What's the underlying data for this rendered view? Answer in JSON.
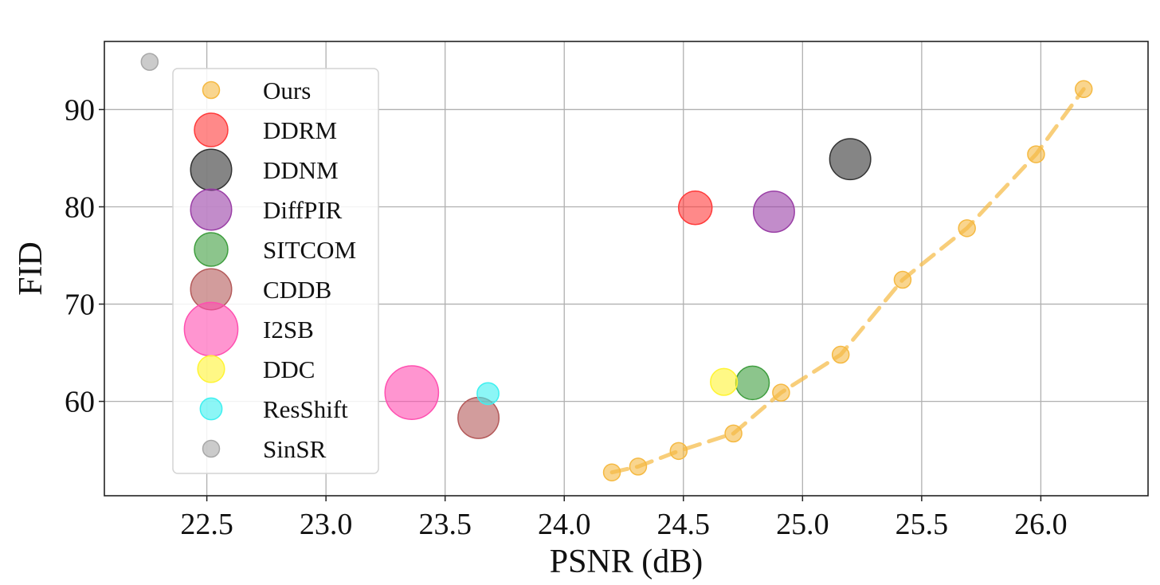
{
  "chart_data": {
    "type": "scatter",
    "title": "",
    "xlabel": "PSNR (dB)",
    "ylabel": "FID",
    "xlim": [
      22.07,
      26.45
    ],
    "ylim": [
      50.3,
      97.0
    ],
    "xticks": [
      22.5,
      23.0,
      23.5,
      24.0,
      24.5,
      25.0,
      25.5,
      26.0
    ],
    "xtick_labels": [
      "22.5",
      "23.0",
      "23.5",
      "24.0",
      "24.5",
      "25.0",
      "25.5",
      "26.0"
    ],
    "yticks": [
      60,
      70,
      80,
      90
    ],
    "ytick_labels": [
      "60",
      "70",
      "80",
      "90"
    ],
    "grid": true,
    "legend_position": "upper-left",
    "series": [
      {
        "name": "Ours",
        "color": "#f5b942",
        "line": "dashed",
        "size": 1.0,
        "points": [
          {
            "x": 24.2,
            "y": 52.7
          },
          {
            "x": 24.31,
            "y": 53.3
          },
          {
            "x": 24.48,
            "y": 54.9
          },
          {
            "x": 24.71,
            "y": 56.7
          },
          {
            "x": 24.91,
            "y": 60.9
          },
          {
            "x": 25.16,
            "y": 64.8
          },
          {
            "x": 25.42,
            "y": 72.5
          },
          {
            "x": 25.69,
            "y": 77.8
          },
          {
            "x": 25.98,
            "y": 85.4
          },
          {
            "x": 26.18,
            "y": 92.1
          }
        ]
      },
      {
        "name": "DDRM",
        "color": "#ff3b3b",
        "size": 2.0,
        "points": [
          {
            "x": 24.55,
            "y": 79.9
          }
        ]
      },
      {
        "name": "DDNM",
        "color": "#333333",
        "size": 2.45,
        "points": [
          {
            "x": 25.2,
            "y": 84.9
          }
        ]
      },
      {
        "name": "DiffPIR",
        "color": "#9a3fa6",
        "size": 2.45,
        "points": [
          {
            "x": 24.88,
            "y": 79.5
          }
        ]
      },
      {
        "name": "SITCOM",
        "color": "#3f9e3f",
        "size": 2.0,
        "points": [
          {
            "x": 24.79,
            "y": 61.9
          }
        ]
      },
      {
        "name": "CDDB",
        "color": "#b45a5a",
        "size": 2.45,
        "points": [
          {
            "x": 23.64,
            "y": 58.3
          }
        ]
      },
      {
        "name": "I2SB",
        "color": "#ff4fb0",
        "size": 3.2,
        "points": [
          {
            "x": 23.36,
            "y": 60.9
          }
        ]
      },
      {
        "name": "DDC",
        "color": "#fff433",
        "size": 1.6,
        "points": [
          {
            "x": 24.67,
            "y": 62.0
          }
        ]
      },
      {
        "name": "ResShift",
        "color": "#3ff0f0",
        "size": 1.3,
        "points": [
          {
            "x": 23.68,
            "y": 60.8
          }
        ]
      },
      {
        "name": "SinSR",
        "color": "#a8a8a8",
        "size": 1.0,
        "points": [
          {
            "x": 22.26,
            "y": 94.9
          }
        ]
      }
    ]
  }
}
